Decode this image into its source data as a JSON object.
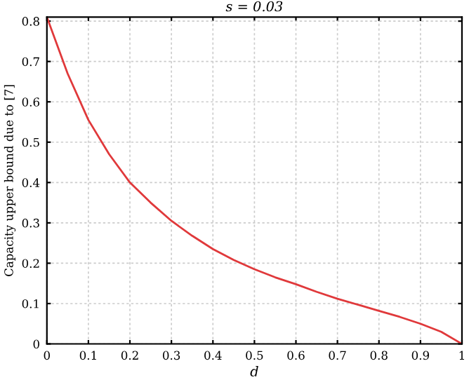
{
  "chart_data": {
    "type": "line",
    "title": "s = 0.03",
    "xlabel": "d",
    "ylabel": "Capacity upper bound due to [7]",
    "x": [
      0,
      0.05,
      0.1,
      0.15,
      0.2,
      0.25,
      0.3,
      0.35,
      0.4,
      0.45,
      0.5,
      0.55,
      0.6,
      0.65,
      0.7,
      0.75,
      0.8,
      0.85,
      0.9,
      0.95,
      1
    ],
    "series": [
      {
        "color": "#e0393b",
        "values": [
          0.81,
          0.67,
          0.555,
          0.47,
          0.4,
          0.35,
          0.305,
          0.268,
          0.235,
          0.208,
          0.185,
          0.165,
          0.148,
          0.129,
          0.112,
          0.097,
          0.082,
          0.067,
          0.05,
          0.03,
          0
        ]
      }
    ],
    "xlim": [
      0,
      1
    ],
    "ylim": [
      0,
      0.81
    ],
    "xticks": [
      0,
      0.1,
      0.2,
      0.3,
      0.4,
      0.5,
      0.6,
      0.7,
      0.8,
      0.9,
      1
    ],
    "yticks": [
      0,
      0.1,
      0.2,
      0.3,
      0.4,
      0.5,
      0.6,
      0.7,
      0.8
    ],
    "grid": true,
    "marker": "none",
    "line_style": "solid",
    "legend": false
  }
}
